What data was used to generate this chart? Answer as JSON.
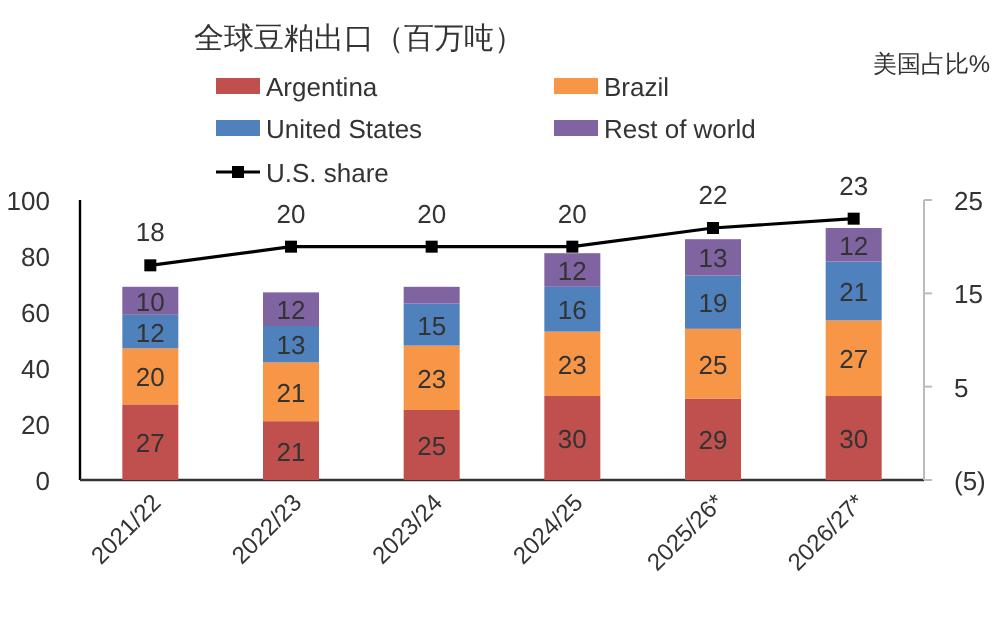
{
  "chart_data": {
    "type": "bar",
    "stacked": true,
    "title": "全球豆粕出口（百万吨）",
    "y2label": "美国占比%",
    "categories": [
      "2021/22",
      "2022/23",
      "2023/24",
      "2024/25",
      "2025/26*",
      "2026/27*"
    ],
    "series": [
      {
        "name": "Argentina",
        "color": "#c0504d",
        "values": [
          27,
          21,
          25,
          30,
          29,
          30
        ],
        "value_labels": [
          "27",
          "21",
          "25",
          "30",
          "29",
          "30"
        ]
      },
      {
        "name": "Brazil",
        "color": "#f79646",
        "values": [
          20,
          21,
          23,
          23,
          25,
          27
        ],
        "value_labels": [
          "20",
          "21",
          "23",
          "23",
          "25",
          "27"
        ]
      },
      {
        "name": "United States",
        "color": "#4f81bd",
        "values": [
          12,
          13,
          15,
          16,
          19,
          21
        ],
        "value_labels": [
          "12",
          "13",
          "15",
          "16",
          "19",
          "21"
        ]
      },
      {
        "name": "Rest of world",
        "color": "#8064a2",
        "values": [
          10,
          12,
          6,
          12,
          13,
          12
        ],
        "value_labels": [
          "10",
          "12",
          null,
          "12",
          "13",
          "12"
        ]
      },
      {
        "name": "U.S. share",
        "type": "line",
        "axis": "y2",
        "color": "#000000",
        "marker": "square",
        "values": [
          18,
          20,
          20,
          20,
          22,
          23
        ],
        "value_labels": [
          "18",
          "20",
          "20",
          "20",
          "22",
          "23"
        ]
      }
    ],
    "ylim": [
      0,
      100
    ],
    "yticks": [
      0,
      20,
      40,
      60,
      80,
      100
    ],
    "y2lim": [
      -5,
      25
    ],
    "y2ticks": [
      {
        "value": -5,
        "label": "(5)"
      },
      5,
      15,
      25
    ],
    "legend": "top"
  }
}
